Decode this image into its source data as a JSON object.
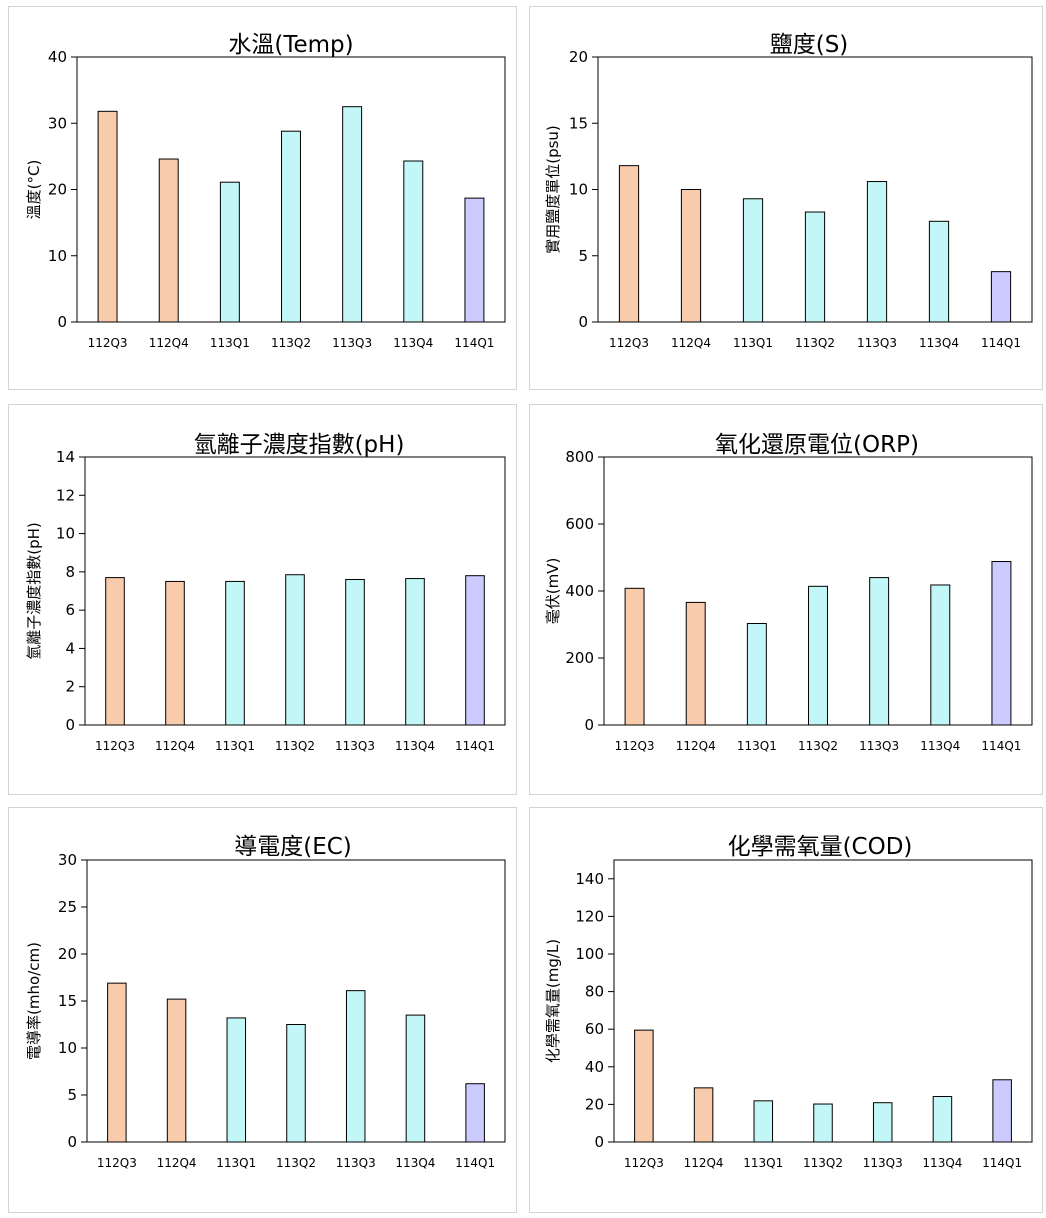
{
  "colors": {
    "series_112": "#f8cbad",
    "series_113": "#c3f7f7",
    "series_114": "#cccbff",
    "bar_stroke": "#000000"
  },
  "chart_data": [
    {
      "type": "bar",
      "title": "水溫(Temp)",
      "ylabel": "溫度(°C)",
      "xlabel": "",
      "categories": [
        "112Q3",
        "112Q4",
        "113Q1",
        "113Q2",
        "113Q3",
        "113Q4",
        "114Q1"
      ],
      "values": [
        31.8,
        24.6,
        21.1,
        28.8,
        32.5,
        24.3,
        18.7
      ],
      "ylim": [
        0,
        40
      ],
      "yticks": [
        0,
        10,
        20,
        30,
        40
      ],
      "grid": false,
      "legend": "none"
    },
    {
      "type": "bar",
      "title": "鹽度(S)",
      "ylabel": "實用鹽度單位(psu)",
      "xlabel": "",
      "categories": [
        "112Q3",
        "112Q4",
        "113Q1",
        "113Q2",
        "113Q3",
        "113Q4",
        "114Q1"
      ],
      "values": [
        11.8,
        10.0,
        9.3,
        8.3,
        10.6,
        7.6,
        3.8
      ],
      "ylim": [
        0,
        20
      ],
      "yticks": [
        0,
        5,
        10,
        15,
        20
      ],
      "grid": false,
      "legend": "none"
    },
    {
      "type": "bar",
      "title": "氫離子濃度指數(pH)",
      "ylabel": "氫離子濃度指數(pH)",
      "xlabel": "",
      "categories": [
        "112Q3",
        "112Q4",
        "113Q1",
        "113Q2",
        "113Q3",
        "113Q4",
        "114Q1"
      ],
      "values": [
        7.7,
        7.5,
        7.5,
        7.85,
        7.6,
        7.65,
        7.8
      ],
      "ylim": [
        0,
        14
      ],
      "yticks": [
        0,
        2,
        4,
        6,
        8,
        10,
        12,
        14
      ],
      "grid": false,
      "legend": "none"
    },
    {
      "type": "bar",
      "title": "氧化還原電位(ORP)",
      "ylabel": "毫伏(mV)",
      "xlabel": "",
      "categories": [
        "112Q3",
        "112Q4",
        "113Q1",
        "113Q2",
        "113Q3",
        "113Q4",
        "114Q1"
      ],
      "values": [
        408,
        366,
        303,
        414,
        440,
        418,
        488
      ],
      "ylim": [
        0,
        800
      ],
      "yticks": [
        0,
        200,
        400,
        600,
        800
      ],
      "grid": false,
      "legend": "none"
    },
    {
      "type": "bar",
      "title": "導電度(EC)",
      "ylabel": "電導率(mho/cm)",
      "xlabel": "",
      "categories": [
        "112Q3",
        "112Q4",
        "113Q1",
        "113Q2",
        "113Q3",
        "113Q4",
        "114Q1"
      ],
      "values": [
        16.9,
        15.2,
        13.2,
        12.5,
        16.1,
        13.5,
        6.2
      ],
      "ylim": [
        0,
        30
      ],
      "yticks": [
        0,
        5,
        10,
        15,
        20,
        25,
        30
      ],
      "grid": false,
      "legend": "none"
    },
    {
      "type": "bar",
      "title": "化學需氧量(COD)",
      "ylabel": "化學需氧量(mg/L)",
      "xlabel": "",
      "categories": [
        "112Q3",
        "112Q4",
        "113Q1",
        "113Q2",
        "113Q3",
        "113Q4",
        "114Q1"
      ],
      "values": [
        59.5,
        28.8,
        21.9,
        20.2,
        20.9,
        24.2,
        33.1
      ],
      "ylim": [
        0,
        150
      ],
      "yticks": [
        0,
        20,
        40,
        60,
        80,
        100,
        120,
        140
      ],
      "grid": false,
      "legend": "none"
    }
  ]
}
